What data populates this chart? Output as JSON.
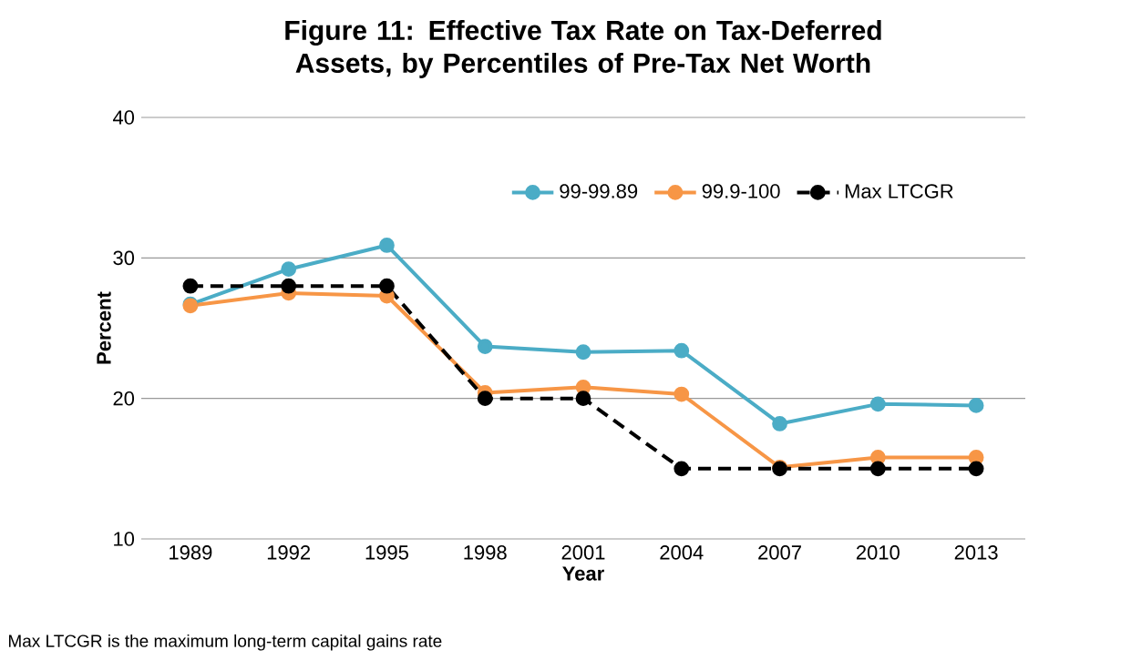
{
  "chart_data": {
    "type": "line",
    "title": "**Figure 11: Effective Tax Rate on Tax-Deferred Assets, by Percentiles of Pre-Tax Net Worth**",
    "xlabel": "Year",
    "ylabel": "Percent",
    "categories": [
      "1989",
      "1992",
      "1995",
      "1998",
      "2001",
      "2004",
      "2007",
      "2010",
      "2013"
    ],
    "series": [
      {
        "name": "99-99.89",
        "color": "#4bacc6",
        "values": [
          26.7,
          29.2,
          30.9,
          23.7,
          23.3,
          23.4,
          18.2,
          19.6,
          19.5
        ]
      },
      {
        "name": "99.9-100",
        "color": "#f79646",
        "values": [
          26.6,
          27.5,
          27.3,
          20.4,
          20.8,
          20.3,
          15.1,
          15.8,
          15.8
        ]
      },
      {
        "name": "Max LTCGR",
        "color": "#000000",
        "values": [
          28,
          28,
          28,
          20,
          20,
          15,
          15,
          15,
          15
        ],
        "line_style": "dashed"
      }
    ],
    "ylim": [
      10,
      40
    ],
    "yticks": [
      10,
      20,
      30,
      40
    ],
    "grid": "y",
    "legend": "top right",
    "marker": "circle",
    "line_style": "solid",
    "annotations": [
      "Max LTCGR is the maximum long-term capital gains rate"
    ]
  }
}
